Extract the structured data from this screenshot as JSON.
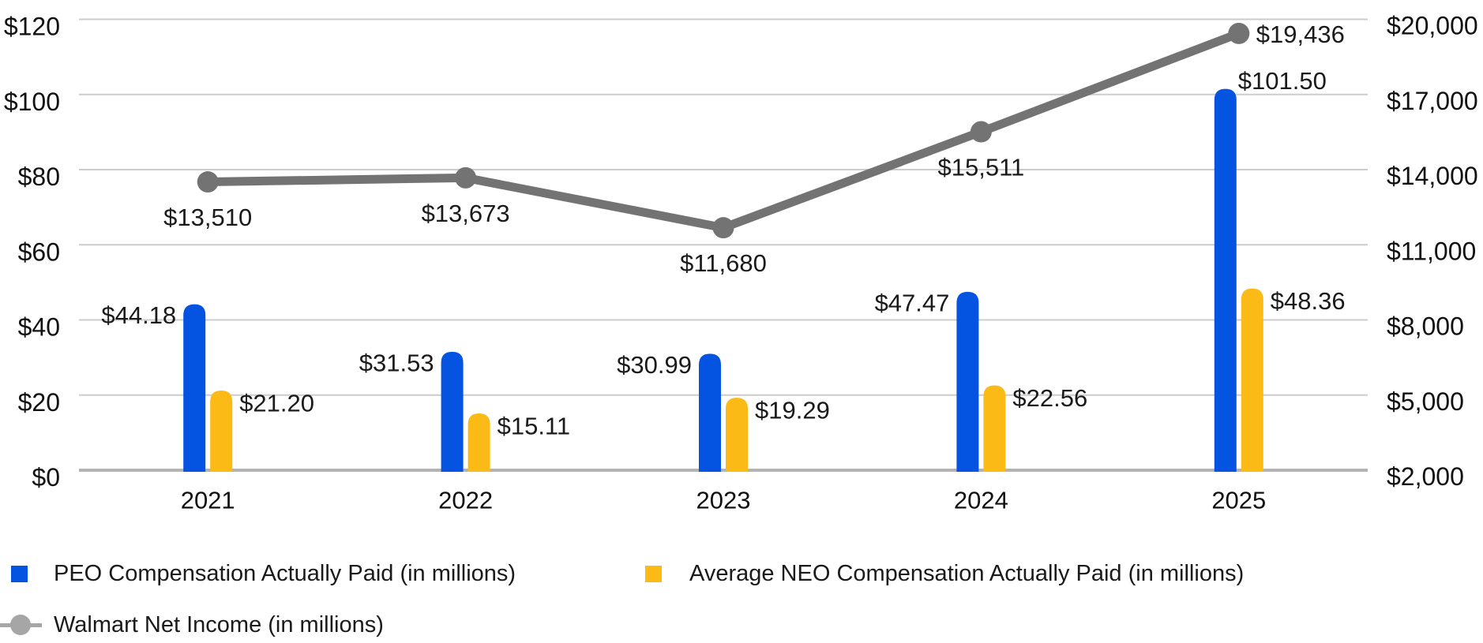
{
  "chart_data": {
    "type": "combo-bar-line",
    "categories": [
      "2021",
      "2022",
      "2023",
      "2024",
      "2025"
    ],
    "series": [
      {
        "name": "PEO Compensation Actually Paid (in millions)",
        "type": "bar",
        "axis": "left",
        "color": "#0454e1",
        "values": [
          44.18,
          31.53,
          30.99,
          47.47,
          101.5
        ],
        "labels": [
          "$44.18",
          "$31.53",
          "$30.99",
          "$47.47",
          "$101.50"
        ]
      },
      {
        "name": "Average NEO Compensation Actually Paid (in millions)",
        "type": "bar",
        "axis": "left",
        "color": "#fcba16",
        "values": [
          21.2,
          15.11,
          19.29,
          22.56,
          48.36
        ],
        "labels": [
          "$21.20",
          "$15.11",
          "$19.29",
          "$22.56",
          "$48.36"
        ]
      },
      {
        "name": "Walmart Net Income (in millions)",
        "type": "line",
        "axis": "right",
        "color": "#737373",
        "values": [
          13510,
          13673,
          11680,
          15511,
          19436
        ],
        "labels": [
          "$13,510",
          "$13,673",
          "$11,680",
          "$15,511",
          "$19,436"
        ]
      }
    ],
    "left_axis": {
      "min": 0,
      "max": 120,
      "tick_labels": [
        "$120",
        "$100",
        "$80",
        "$60",
        "$40",
        "$20",
        "$0"
      ],
      "tick_values": [
        120,
        100,
        80,
        60,
        40,
        20,
        0
      ]
    },
    "right_axis": {
      "min": 2000,
      "max": 20000,
      "tick_labels": [
        "$20,000",
        "$17,000",
        "$14,000",
        "$11,000",
        "$8,000",
        "$5,000",
        "$2,000"
      ],
      "tick_values": [
        20000,
        17000,
        14000,
        11000,
        8000,
        5000,
        2000
      ]
    },
    "grid": true,
    "legend_position": "bottom-left",
    "colors": {
      "gridline": "#cccccc",
      "baseline": "#b3b3b3",
      "legend_marker_gray": "#a6a6a6",
      "label_text": "#1a1a1a"
    }
  }
}
